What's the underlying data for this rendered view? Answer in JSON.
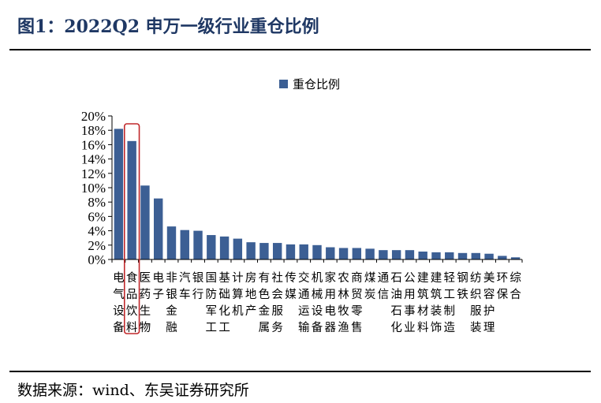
{
  "figure_title": "图1：2022Q2 申万一级行业重仓比例",
  "source_note": "数据来源：wind、东吴证券研究所",
  "colors": {
    "bar": "#3c5f94",
    "highlight_box": "#c0282b",
    "title": "#1f3864"
  },
  "chart_data": {
    "type": "bar",
    "legend": {
      "label": "重仓比例",
      "placement": "top-center"
    },
    "ylim": [
      0,
      20
    ],
    "yticks": [
      "0%",
      "2%",
      "4%",
      "6%",
      "8%",
      "10%",
      "12%",
      "14%",
      "16%",
      "18%",
      "20%"
    ],
    "grid": false,
    "categories": [
      "电气设备",
      "食品饮料",
      "医药生物",
      "电子",
      "非银金融",
      "汽车",
      "银行",
      "国防军工",
      "基础化工",
      "计算机",
      "房地产",
      "有色金属",
      "社会服务",
      "传媒",
      "交通运输",
      "机械设备",
      "家用电器",
      "农林牧渔",
      "商贸零售",
      "煤炭",
      "通信",
      "石油石化",
      "公用事业",
      "建筑材料",
      "建筑装饰",
      "轻工制造",
      "钢铁",
      "纺织服装",
      "美容护理",
      "环保",
      "综合"
    ],
    "category_lines": [
      [
        "电气设备"
      ],
      [
        "食品饮料"
      ],
      [
        "医药生物"
      ],
      [
        "电子"
      ],
      [
        "非银金融"
      ],
      [
        "汽车"
      ],
      [
        "银行"
      ],
      [
        "国防军工"
      ],
      [
        "基础化工"
      ],
      [
        "计算机"
      ],
      [
        "房地产"
      ],
      [
        "有色金属"
      ],
      [
        "社会服务"
      ],
      [
        "传媒"
      ],
      [
        "交通运输"
      ],
      [
        "机械设备"
      ],
      [
        "家用电器"
      ],
      [
        "农林牧渔"
      ],
      [
        "商贸零售"
      ],
      [
        "煤炭"
      ],
      [
        "通信"
      ],
      [
        "石油石化"
      ],
      [
        "公用事业"
      ],
      [
        "建筑材料"
      ],
      [
        "建筑装饰"
      ],
      [
        "轻工制造"
      ],
      [
        "钢铁"
      ],
      [
        "纺织服装"
      ],
      [
        "美容护理"
      ],
      [
        "环保"
      ],
      [
        "综合"
      ]
    ],
    "values": [
      18.2,
      16.5,
      10.3,
      8.5,
      4.6,
      4.1,
      4.0,
      3.4,
      3.2,
      2.9,
      2.4,
      2.3,
      2.3,
      2.1,
      2.1,
      2.0,
      1.7,
      1.6,
      1.6,
      1.5,
      1.3,
      1.3,
      1.3,
      1.1,
      1.0,
      1.0,
      0.9,
      0.9,
      0.8,
      0.5,
      0.3
    ],
    "highlight_index": 1
  }
}
